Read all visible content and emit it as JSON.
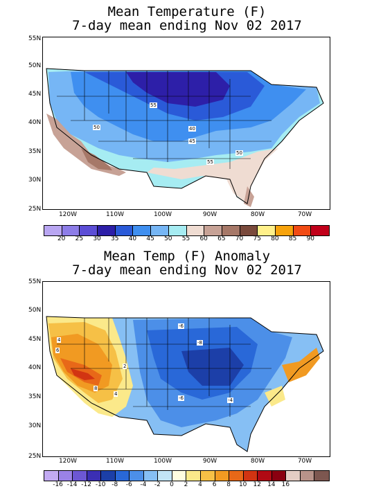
{
  "panels": [
    {
      "title_line1": "Mean Temperature (F)",
      "title_line2": "7-day mean ending Nov 02 2017",
      "lat_labels": [
        "55N",
        "50N",
        "45N",
        "40N",
        "35N",
        "30N",
        "25N"
      ],
      "lon_labels": [
        "120W",
        "110W",
        "100W",
        "90W",
        "80W",
        "70W"
      ],
      "colorbar": {
        "colors": [
          "#b9a6f2",
          "#8d7de8",
          "#5c4ed6",
          "#2d1fa8",
          "#2a5ad8",
          "#3f8ff0",
          "#76b6f5",
          "#a6ecf2",
          "#efdcd2",
          "#c7a296",
          "#a67868",
          "#7a4a3c",
          "#fff08a",
          "#f7a30c",
          "#f14b14",
          "#c1001a"
        ],
        "labels": [
          "20",
          "25",
          "30",
          "35",
          "40",
          "45",
          "50",
          "55",
          "60",
          "65",
          "70",
          "75",
          "80",
          "85",
          "90"
        ]
      },
      "contour_labels": [
        "55",
        "50",
        "40",
        "45",
        "50",
        "55"
      ]
    },
    {
      "title_line1": "Mean Temp (F) Anomaly",
      "title_line2": "7-day mean ending Nov 02 2017",
      "lat_labels": [
        "55N",
        "50N",
        "45N",
        "40N",
        "35N",
        "30N",
        "25N"
      ],
      "lon_labels": [
        "120W",
        "110W",
        "100W",
        "90W",
        "80W",
        "70W"
      ],
      "colorbar": {
        "colors": [
          "#c2aaf2",
          "#9a82e6",
          "#6c57d4",
          "#3b2fb4",
          "#1c3fa8",
          "#2968d8",
          "#4c8fe8",
          "#86bff4",
          "#c2e4f6",
          "#fffde0",
          "#fbe98a",
          "#f6c046",
          "#f19a22",
          "#e86818",
          "#d23412",
          "#b10a14",
          "#8a0010",
          "#e4cdc4",
          "#b8938a",
          "#7d5750"
        ],
        "labels": [
          "-16",
          "-14",
          "-12",
          "-10",
          "-8",
          "-6",
          "-4",
          "-2",
          "0",
          "2",
          "4",
          "6",
          "8",
          "10",
          "12",
          "14",
          "16"
        ]
      },
      "contour_labels": [
        "-6",
        "-8",
        "-6",
        "-4",
        "2",
        "4",
        "6",
        "8",
        "4"
      ]
    }
  ]
}
